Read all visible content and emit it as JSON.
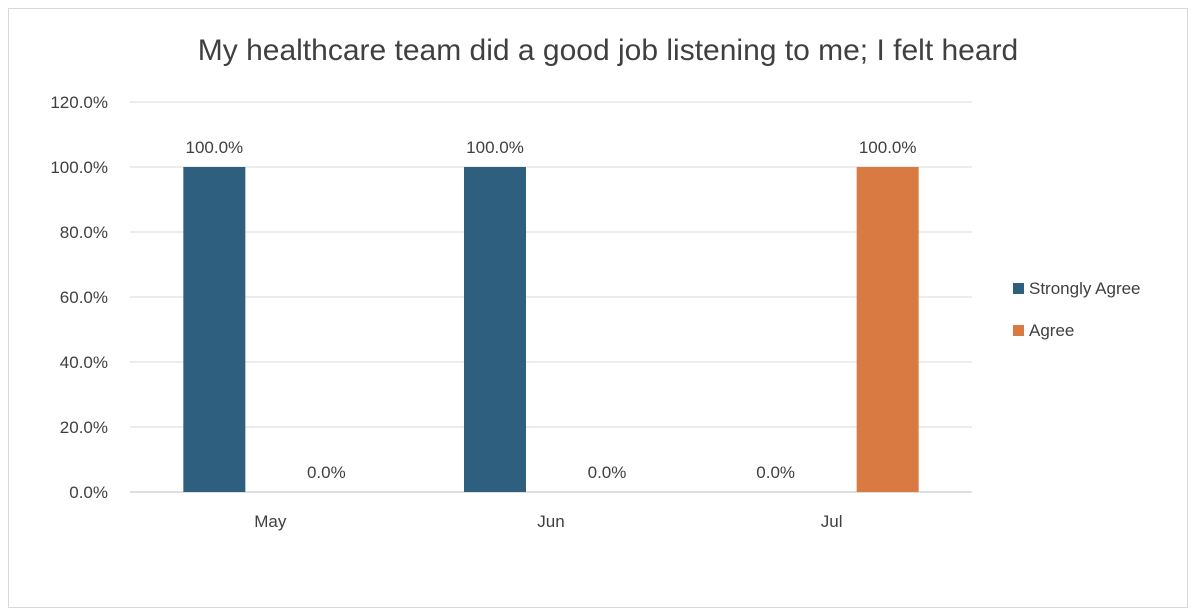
{
  "chart_data": {
    "type": "bar",
    "title": "My healthcare team did a good job listening to me; I felt heard",
    "xlabel": "",
    "ylabel": "",
    "categories": [
      "May",
      "Jun",
      "Jul"
    ],
    "series": [
      {
        "name": "Strongly Agree",
        "values": [
          100.0,
          100.0,
          0.0
        ],
        "color": "#2e5f7f",
        "labels": [
          "100.0%",
          "100.0%",
          "0.0%"
        ]
      },
      {
        "name": "Agree",
        "values": [
          0.0,
          0.0,
          100.0
        ],
        "color": "#d87a41",
        "labels": [
          "0.0%",
          "0.0%",
          "100.0%"
        ]
      }
    ],
    "ylim": [
      0,
      120
    ],
    "yticks": [
      0,
      20,
      40,
      60,
      80,
      100,
      120
    ],
    "ytick_labels": [
      "0.0%",
      "20.0%",
      "40.0%",
      "60.0%",
      "80.0%",
      "100.0%",
      "120.0%"
    ],
    "grid": true,
    "legend_position": "right"
  }
}
